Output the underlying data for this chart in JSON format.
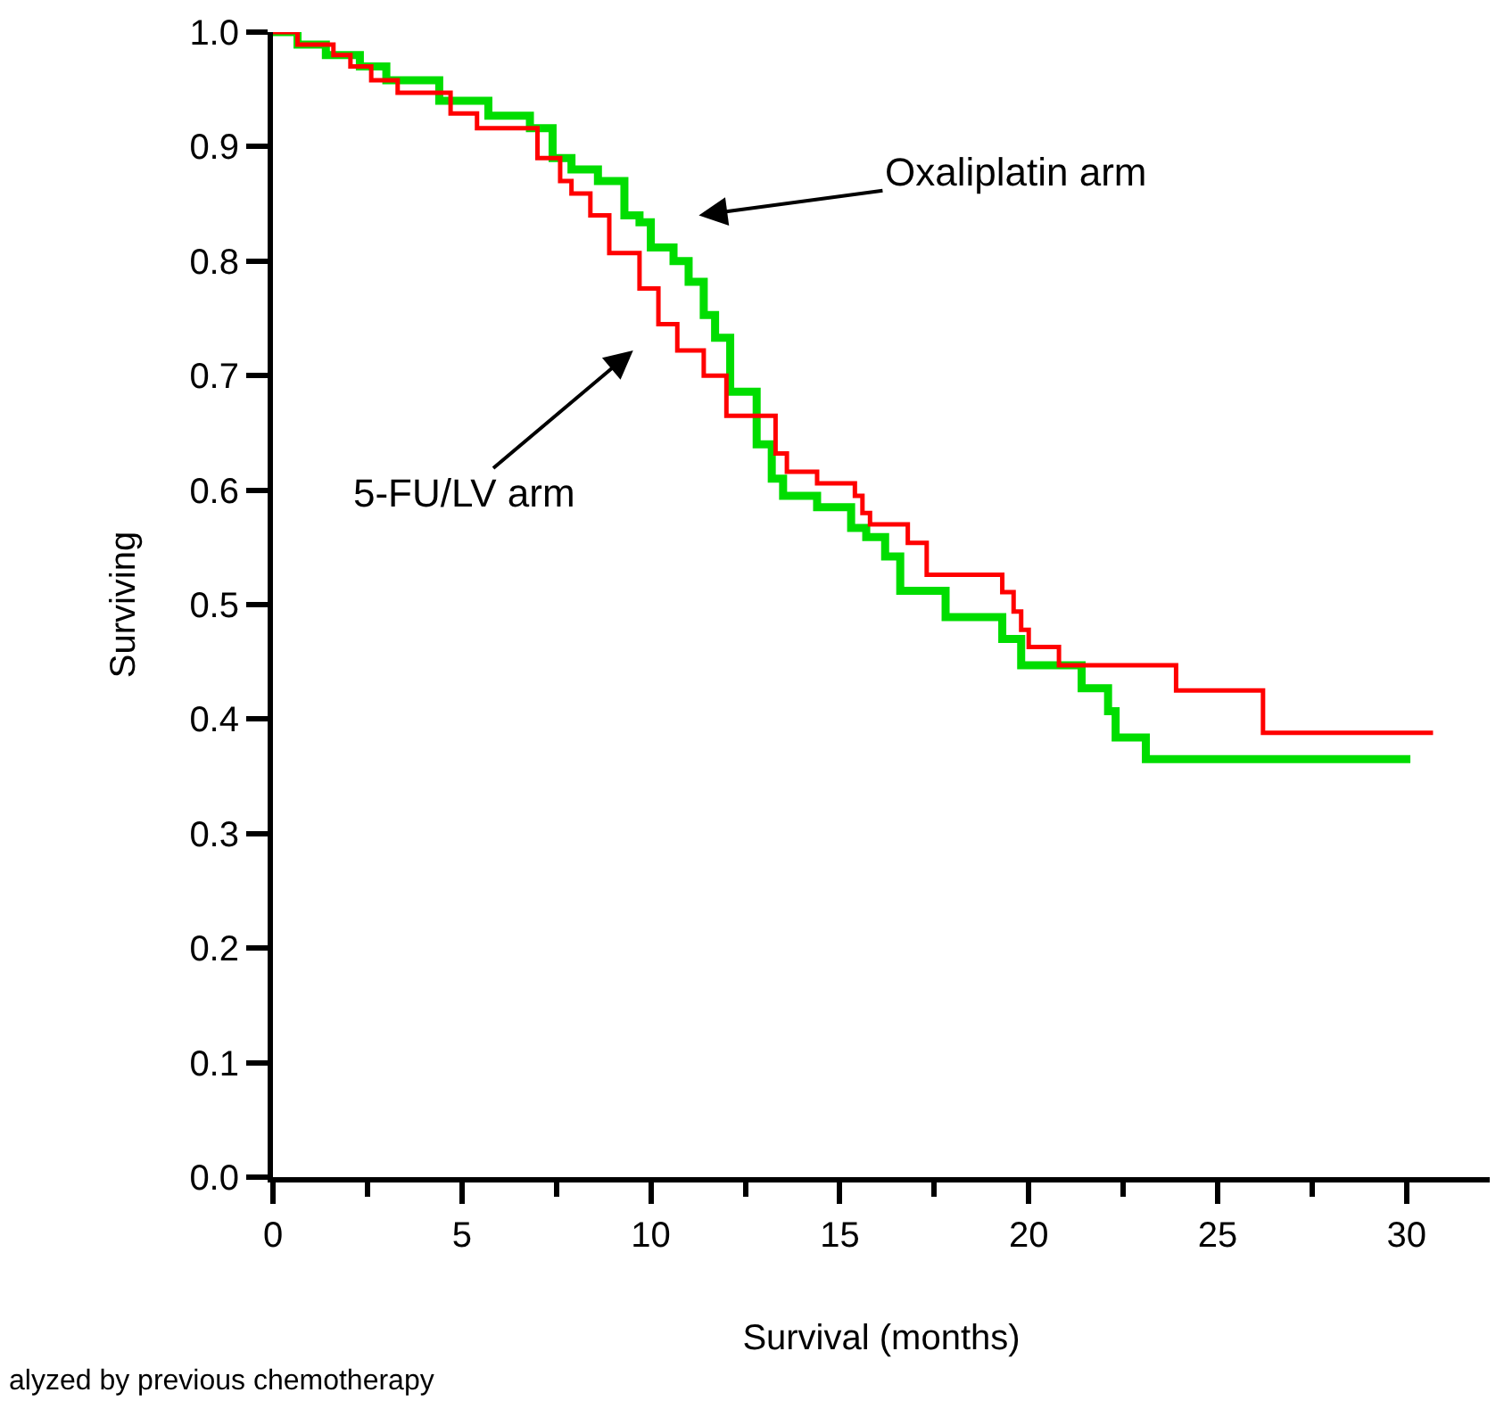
{
  "chart_data": {
    "type": "step",
    "xlabel": "Survival (months)",
    "ylabel": "Surviving",
    "xlim": [
      0,
      32.2
    ],
    "ylim": [
      0,
      1.0
    ],
    "xticks": [
      0,
      {
        "value": 2.5,
        "label": null
      },
      5,
      {
        "value": 7.5,
        "label": null
      },
      10,
      {
        "value": 12.5,
        "label": null
      },
      15,
      {
        "value": 17.5,
        "label": null
      },
      20,
      {
        "value": 22.5,
        "label": null
      },
      25,
      {
        "value": 27.5,
        "label": null
      },
      30
    ],
    "yticks": [
      "0.0",
      0.1,
      0.2,
      0.3,
      0.4,
      0.5,
      0.6,
      0.7,
      0.8,
      0.9,
      "1.0"
    ],
    "marker": "none",
    "line_style": "solid",
    "series": [
      {
        "color": "#00dd00",
        "x": [
          0,
          0.65,
          1.4,
          2.3,
          3.0,
          4.4,
          5.7,
          6.8,
          7.4,
          7.9,
          8.6,
          9.3,
          9.7,
          10.0,
          10.6,
          11.0,
          11.4,
          11.7,
          12.1,
          12.8,
          13.2,
          13.5,
          14.4,
          15.3,
          15.7,
          16.2,
          16.6,
          17.8,
          19.3,
          19.8,
          21.4,
          22.1,
          22.3,
          23.1,
          30.1
        ],
        "values": [
          1.0,
          0.989,
          0.98,
          0.97,
          0.958,
          0.94,
          0.927,
          0.916,
          0.89,
          0.88,
          0.87,
          0.84,
          0.834,
          0.812,
          0.8,
          0.782,
          0.753,
          0.733,
          0.686,
          0.64,
          0.61,
          0.595,
          0.585,
          0.567,
          0.559,
          0.542,
          0.512,
          0.489,
          0.47,
          0.447,
          0.427,
          0.407,
          0.384,
          0.365,
          0.365
        ]
      },
      {
        "color": "#ff0000",
        "x": [
          0,
          0.65,
          1.6,
          2.05,
          2.6,
          3.3,
          4.7,
          5.4,
          7.0,
          7.6,
          7.9,
          8.4,
          8.9,
          9.7,
          10.2,
          10.7,
          11.4,
          12.0,
          13.3,
          13.6,
          14.4,
          15.4,
          15.6,
          15.8,
          16.8,
          17.3,
          19.3,
          19.6,
          19.8,
          20.0,
          20.8,
          23.9,
          26.2,
          30.7
        ],
        "values": [
          1.0,
          0.989,
          0.98,
          0.97,
          0.958,
          0.947,
          0.929,
          0.916,
          0.89,
          0.87,
          0.859,
          0.84,
          0.807,
          0.776,
          0.745,
          0.722,
          0.7,
          0.665,
          0.632,
          0.616,
          0.606,
          0.595,
          0.58,
          0.57,
          0.554,
          0.526,
          0.511,
          0.494,
          0.478,
          0.463,
          0.447,
          0.425,
          0.388,
          0.388
        ]
      }
    ],
    "annotations": [
      "Oxaliplatin arm",
      "5-FU/LV arm",
      "alyzed by previous chemotherapy"
    ]
  }
}
